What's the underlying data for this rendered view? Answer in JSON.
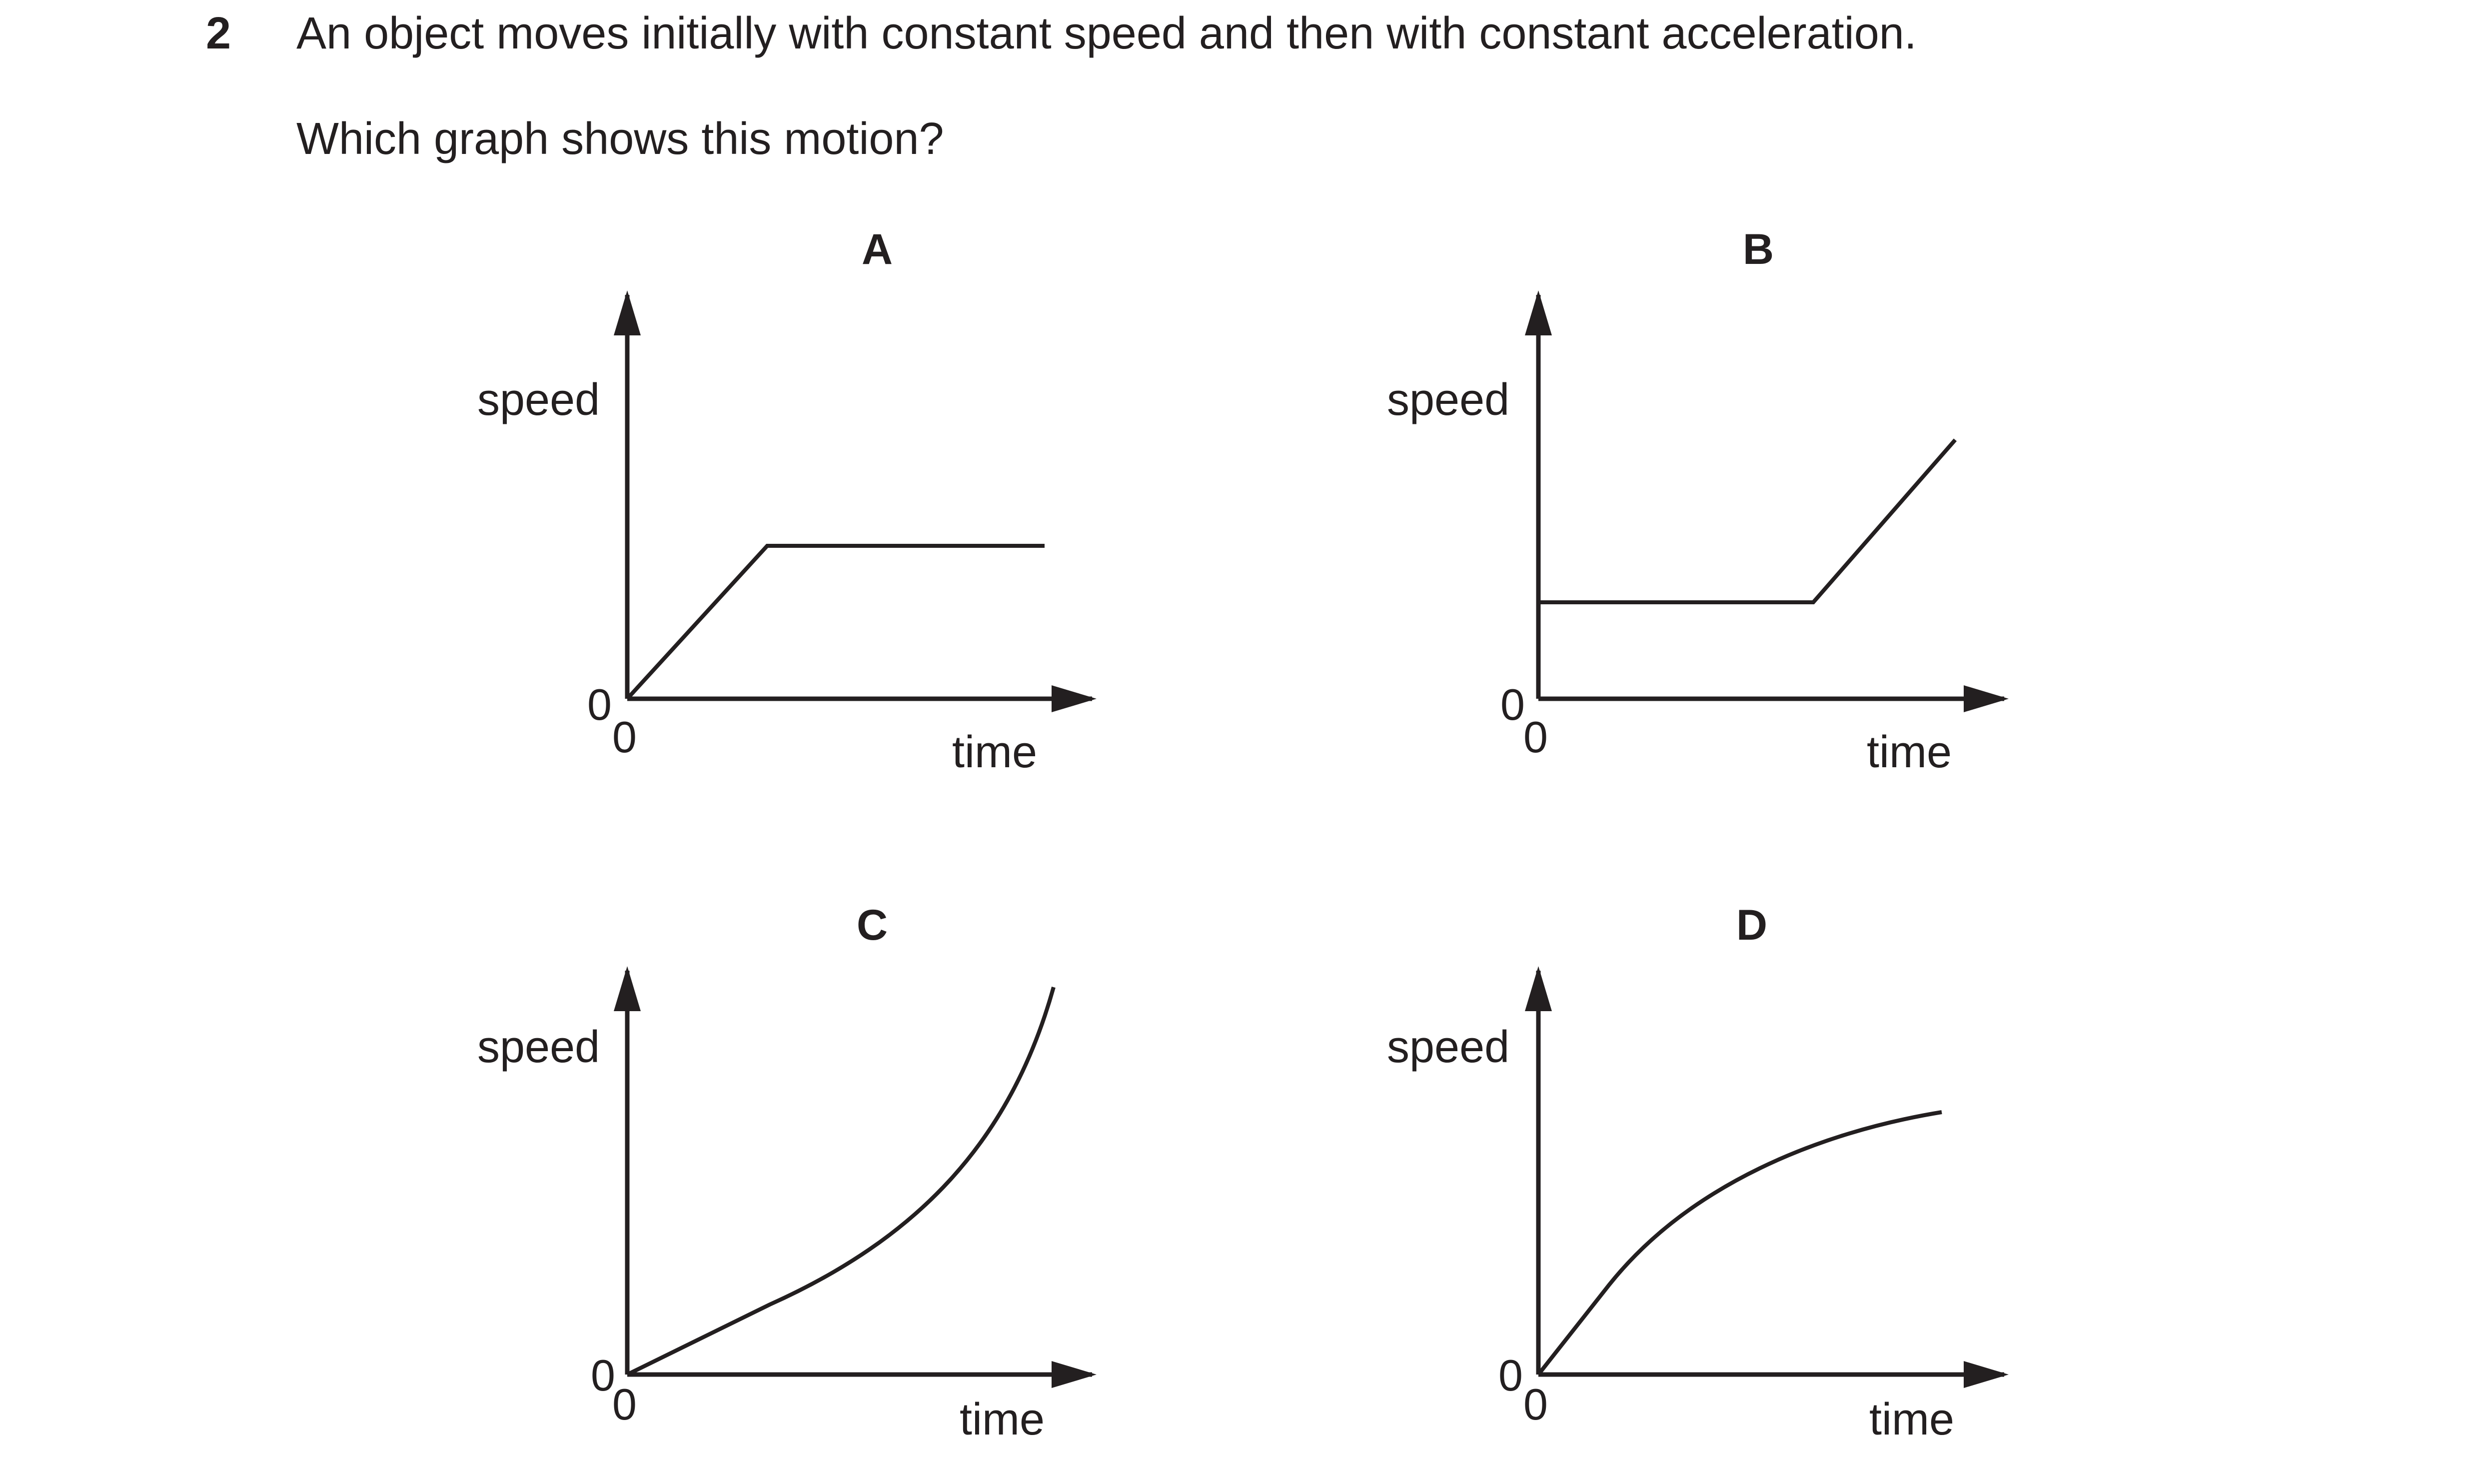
{
  "question": {
    "number": "2",
    "text": "An object moves initially with constant speed and then with constant acceleration.",
    "prompt": "Which graph shows this motion?"
  },
  "graphs": [
    {
      "label": "A",
      "y_axis_label": "speed",
      "x_axis_label": "time",
      "origin_y_label": "0",
      "origin_x_label": "0",
      "curve": "rises linearly from origin, then constant"
    },
    {
      "label": "B",
      "y_axis_label": "speed",
      "x_axis_label": "time",
      "origin_y_label": "0",
      "origin_x_label": "0",
      "curve": "constant, then rises linearly"
    },
    {
      "label": "C",
      "y_axis_label": "speed",
      "x_axis_label": "time",
      "origin_y_label": "0",
      "origin_x_label": "0",
      "curve": "rises with increasing gradient"
    },
    {
      "label": "D",
      "y_axis_label": "speed",
      "x_axis_label": "time",
      "origin_y_label": "0",
      "origin_x_label": "0",
      "curve": "rises with decreasing gradient"
    }
  ]
}
